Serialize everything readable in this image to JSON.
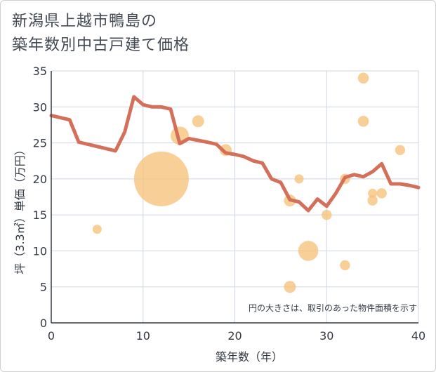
{
  "chart_data": {
    "type": "scatter+line",
    "title_line1": "新潟県上越市鴨島の",
    "title_line2": "築年数別中古戸建て価格",
    "xlabel": "築年数（年）",
    "ylabel": "坪（3.3㎡）単価（万円）",
    "xlim": [
      0,
      40
    ],
    "ylim": [
      0,
      35
    ],
    "xticks": [
      "0",
      "10",
      "20",
      "30",
      "40"
    ],
    "yticks": [
      "0",
      "5",
      "10",
      "15",
      "20",
      "25",
      "30",
      "35"
    ],
    "xtick_values": [
      0,
      10,
      20,
      30,
      40
    ],
    "ytick_values": [
      0,
      5,
      10,
      15,
      20,
      25,
      30,
      35
    ],
    "grid": true,
    "note": "円の大きさは、取引のあった物件面積を示す",
    "colors": {
      "line": "#d4705a",
      "bubble": "#f5c27a",
      "grid": "#cfd6e2",
      "axis": "#333a44"
    },
    "scatter": [
      {
        "x": 5,
        "y": 13,
        "size": 1
      },
      {
        "x": 12,
        "y": 20,
        "size": 6
      },
      {
        "x": 14,
        "y": 26,
        "size": 2
      },
      {
        "x": 16,
        "y": 28,
        "size": 1.3
      },
      {
        "x": 19,
        "y": 24,
        "size": 1.3
      },
      {
        "x": 26,
        "y": 5,
        "size": 1.3
      },
      {
        "x": 26,
        "y": 17,
        "size": 1.3
      },
      {
        "x": 27,
        "y": 20,
        "size": 1
      },
      {
        "x": 28,
        "y": 10,
        "size": 2.2
      },
      {
        "x": 30,
        "y": 15,
        "size": 1.1
      },
      {
        "x": 32,
        "y": 8,
        "size": 1.1
      },
      {
        "x": 32,
        "y": 20,
        "size": 1.1
      },
      {
        "x": 34,
        "y": 34,
        "size": 1.2
      },
      {
        "x": 34,
        "y": 28,
        "size": 1.2
      },
      {
        "x": 35,
        "y": 18,
        "size": 1
      },
      {
        "x": 35,
        "y": 17,
        "size": 1.1
      },
      {
        "x": 36,
        "y": 18,
        "size": 1.1
      },
      {
        "x": 38,
        "y": 24,
        "size": 1.1
      }
    ],
    "line": {
      "x": [
        0,
        2,
        3,
        5,
        7,
        8,
        9,
        10,
        11,
        12,
        13,
        14,
        15,
        17,
        18,
        19,
        20,
        21,
        22,
        23,
        24,
        25,
        26,
        27,
        28,
        29,
        30,
        31,
        32,
        33,
        34,
        35,
        36,
        37,
        38,
        39,
        40
      ],
      "y": [
        28.8,
        28.2,
        25.1,
        24.5,
        23.9,
        26.5,
        31.4,
        30.3,
        30.0,
        30.0,
        29.7,
        24.9,
        25.6,
        25.1,
        24.8,
        23.6,
        23.4,
        23.1,
        22.5,
        22.2,
        20.0,
        19.5,
        17.1,
        16.8,
        15.6,
        17.2,
        16.2,
        18.0,
        20.2,
        20.6,
        20.3,
        21.0,
        22.1,
        19.3,
        19.3,
        19.1,
        18.8
      ]
    }
  }
}
